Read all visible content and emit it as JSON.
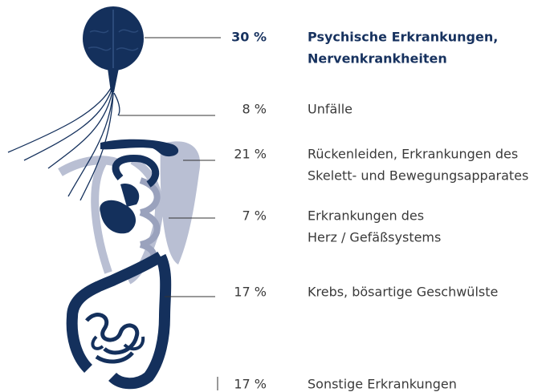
{
  "items": [
    {
      "percent": "30 %",
      "lines": [
        "Psychische Erkrankungen,",
        "Nervenkrankheiten"
      ]
    },
    {
      "percent": "8 %",
      "lines": [
        "Unfälle"
      ]
    },
    {
      "percent": "21 %",
      "lines": [
        "Rückenleiden, Erkrankungen des",
        "Skelett- und Bewegungsapparates"
      ]
    },
    {
      "percent": "7 %",
      "lines": [
        "Erkrankungen des",
        "Herz / Gefäßsystems"
      ]
    },
    {
      "percent": "17 %",
      "lines": [
        "Krebs, bösartige Geschwülste"
      ]
    },
    {
      "percent": "17 %",
      "lines": [
        "Sonstige Erkrankungen"
      ]
    }
  ]
}
